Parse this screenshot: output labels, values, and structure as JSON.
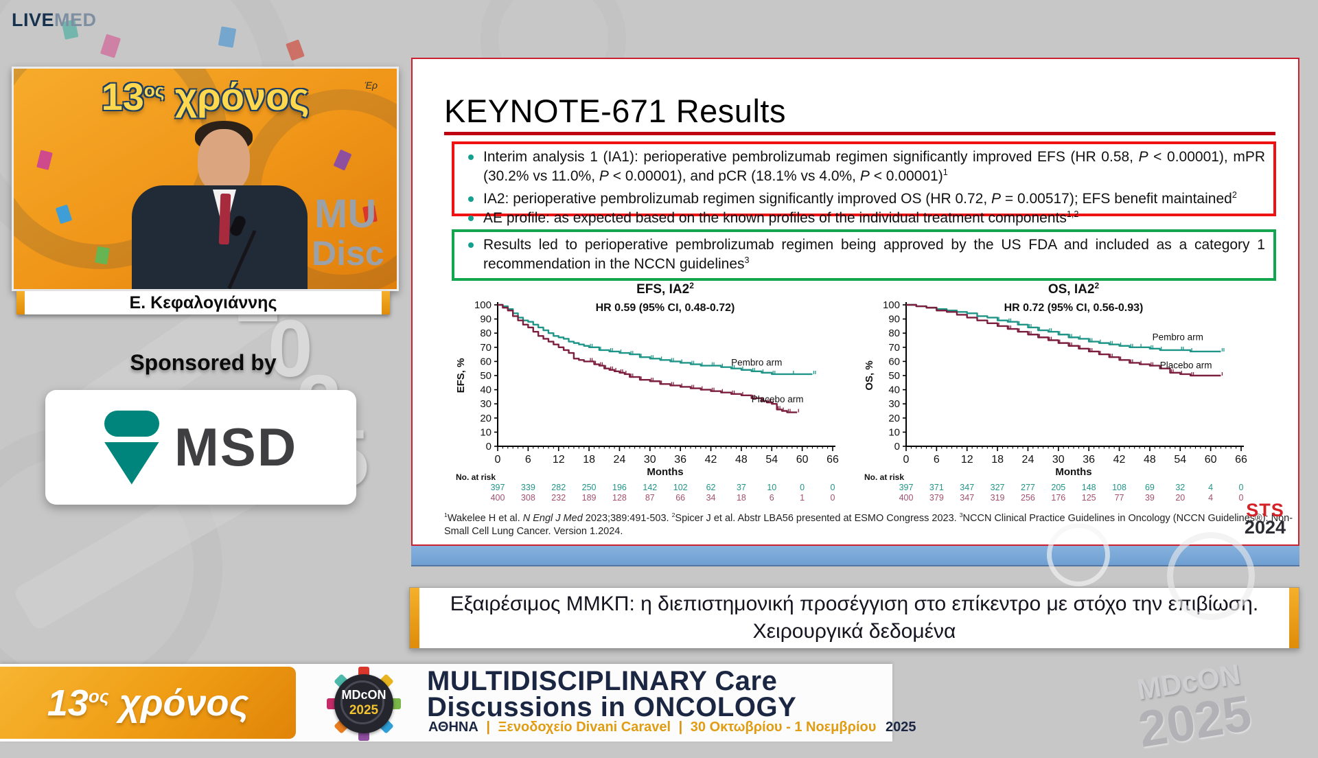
{
  "brand": {
    "live": "LIVE",
    "med": "MED"
  },
  "video": {
    "overlay": {
      "num": "13",
      "sup": "ος",
      "word": " χρόνος"
    },
    "corner_text": "Έρ",
    "backdrop_text_1": "MU",
    "backdrop_text_2": "Disc",
    "speaker_name": "Ε. Κεφαλογιάννης"
  },
  "sponsor": {
    "label": "Sponsored by",
    "logo_text": "MSD"
  },
  "slide": {
    "title": "KEYNOTE-671 Results",
    "bullet_groups": [
      {
        "box": "red",
        "items": [
          "Interim analysis 1 (IA1): perioperative pembrolizumab regimen significantly improved EFS (HR 0.58, <i>P</i> &lt; 0.00001), mPR (30.2% vs 11.0%, <i>P</i> &lt; 0.00001), and pCR (18.1% vs 4.0%, <i>P</i> &lt; 0.00001)<sup>1</sup>",
          "IA2: perioperative pembrolizumab regimen significantly improved OS (HR 0.72, <i>P</i> = 0.00517); EFS benefit maintained<sup>2</sup>"
        ]
      },
      {
        "box": "none",
        "items": [
          "AE profile: as expected based on the known profiles of the individual treatment components<sup>1,2</sup>"
        ]
      },
      {
        "box": "green",
        "items": [
          "Results led to perioperative pembrolizumab regimen being approved by the US FDA and included as a category 1 recommendation in the NCCN guidelines<sup>3</sup>"
        ]
      }
    ],
    "references": "<sup>1</sup>Wakelee H et al. <i>N Engl J Med</i> 2023;389:491-503.  <sup>2</sup>Spicer J et al. Abstr LBA56 presented at ESMO Congress 2023. <sup>3</sup>NCCN Clinical Practice Guidelines in Oncology (NCCN Guidelines®): Non-Small Cell Lung Cancer. Version 1.2024.",
    "sts_logo": {
      "line1": "STS",
      "line2": "2024"
    }
  },
  "chart_data": [
    {
      "type": "line",
      "subtype": "kaplan-meier-step",
      "title": {
        "text": "EFS, IA2",
        "sup": "2"
      },
      "hr_text": "HR 0.59 (95% CI, 0.48-0.72)",
      "ylabel": "EFS, %",
      "xlabel": "Months",
      "ylim": [
        0,
        100
      ],
      "ytick_step": 10,
      "xticks": [
        0,
        6,
        12,
        18,
        24,
        30,
        36,
        42,
        48,
        54,
        60,
        66
      ],
      "grid": false,
      "series": [
        {
          "name": "Pembro arm",
          "color": "#1f9588",
          "points": [
            [
              0,
              100
            ],
            [
              1,
              99
            ],
            [
              2,
              97
            ],
            [
              3,
              94
            ],
            [
              4,
              91
            ],
            [
              5,
              89
            ],
            [
              6,
              88
            ],
            [
              7,
              86
            ],
            [
              8,
              84
            ],
            [
              9,
              82
            ],
            [
              10,
              80
            ],
            [
              11,
              78
            ],
            [
              12,
              77
            ],
            [
              13,
              76
            ],
            [
              14,
              74
            ],
            [
              15,
              73
            ],
            [
              16,
              72
            ],
            [
              17,
              71
            ],
            [
              18,
              70
            ],
            [
              20,
              68
            ],
            [
              22,
              67
            ],
            [
              24,
              66
            ],
            [
              26,
              65
            ],
            [
              28,
              63
            ],
            [
              30,
              62
            ],
            [
              32,
              61
            ],
            [
              34,
              60
            ],
            [
              36,
              59
            ],
            [
              38,
              58
            ],
            [
              40,
              57
            ],
            [
              42,
              57
            ],
            [
              44,
              56
            ],
            [
              46,
              55
            ],
            [
              48,
              54
            ],
            [
              50,
              53
            ],
            [
              52,
              52
            ],
            [
              54,
              51
            ],
            [
              58,
              51
            ],
            [
              62,
              51
            ]
          ]
        },
        {
          "name": "Placebo arm",
          "color": "#7c1f3e",
          "points": [
            [
              0,
              100
            ],
            [
              1,
              98
            ],
            [
              2,
              96
            ],
            [
              3,
              92
            ],
            [
              4,
              89
            ],
            [
              5,
              86
            ],
            [
              6,
              84
            ],
            [
              7,
              81
            ],
            [
              8,
              78
            ],
            [
              9,
              76
            ],
            [
              10,
              74
            ],
            [
              11,
              72
            ],
            [
              12,
              70
            ],
            [
              13,
              68
            ],
            [
              14,
              66
            ],
            [
              15,
              62
            ],
            [
              16,
              61
            ],
            [
              17,
              60
            ],
            [
              18,
              60
            ],
            [
              19,
              58
            ],
            [
              20,
              57
            ],
            [
              21,
              55
            ],
            [
              22,
              54
            ],
            [
              23,
              53
            ],
            [
              24,
              52
            ],
            [
              25,
              51
            ],
            [
              26,
              49
            ],
            [
              28,
              47
            ],
            [
              30,
              46
            ],
            [
              32,
              44
            ],
            [
              34,
              43
            ],
            [
              36,
              42
            ],
            [
              38,
              41
            ],
            [
              40,
              40
            ],
            [
              42,
              39
            ],
            [
              44,
              38
            ],
            [
              46,
              37
            ],
            [
              48,
              36
            ],
            [
              50,
              34
            ],
            [
              52,
              32
            ],
            [
              53,
              31
            ],
            [
              54,
              30
            ],
            [
              55,
              26
            ],
            [
              56,
              25
            ],
            [
              57,
              24
            ],
            [
              59,
              24
            ]
          ]
        }
      ],
      "labels": [
        {
          "text": "Pembro arm",
          "x": 46,
          "y": 57
        },
        {
          "text": "Placebo arm",
          "x": 50,
          "y": 31
        }
      ],
      "no_at_risk": {
        "label": "No. at risk",
        "rows": [
          {
            "name": "Pembro arm",
            "color": "#1f9588",
            "values": [
              "397",
              "339",
              "282",
              "250",
              "196",
              "142",
              "102",
              "62",
              "37",
              "10",
              "0",
              "0"
            ]
          },
          {
            "name": "Placebo arm",
            "color": "#a2506e",
            "values": [
              "400",
              "308",
              "232",
              "189",
              "128",
              "87",
              "66",
              "34",
              "18",
              "6",
              "1",
              "0"
            ]
          }
        ]
      }
    },
    {
      "type": "line",
      "subtype": "kaplan-meier-step",
      "title": {
        "text": "OS, IA2",
        "sup": "2"
      },
      "hr_text": "HR 0.72 (95% CI, 0.56-0.93)",
      "ylabel": "OS, %",
      "xlabel": "Months",
      "ylim": [
        0,
        100
      ],
      "ytick_step": 10,
      "xticks": [
        0,
        6,
        12,
        18,
        24,
        30,
        36,
        42,
        48,
        54,
        60,
        66
      ],
      "grid": false,
      "series": [
        {
          "name": "Pembro arm",
          "color": "#1f9588",
          "points": [
            [
              0,
              100
            ],
            [
              2,
              99
            ],
            [
              4,
              98
            ],
            [
              6,
              97
            ],
            [
              8,
              96
            ],
            [
              10,
              95
            ],
            [
              12,
              94
            ],
            [
              14,
              92
            ],
            [
              16,
              91
            ],
            [
              18,
              89
            ],
            [
              20,
              88
            ],
            [
              22,
              86
            ],
            [
              24,
              84
            ],
            [
              26,
              82
            ],
            [
              28,
              81
            ],
            [
              30,
              79
            ],
            [
              32,
              77
            ],
            [
              34,
              76
            ],
            [
              36,
              74
            ],
            [
              38,
              73
            ],
            [
              40,
              72
            ],
            [
              42,
              71
            ],
            [
              44,
              70
            ],
            [
              46,
              70
            ],
            [
              48,
              69
            ],
            [
              50,
              68
            ],
            [
              54,
              68
            ],
            [
              56,
              67
            ],
            [
              62,
              67
            ]
          ]
        },
        {
          "name": "Placebo arm",
          "color": "#7c1f3e",
          "points": [
            [
              0,
              100
            ],
            [
              2,
              99
            ],
            [
              4,
              98
            ],
            [
              6,
              96
            ],
            [
              8,
              95
            ],
            [
              10,
              93
            ],
            [
              12,
              91
            ],
            [
              14,
              89
            ],
            [
              16,
              87
            ],
            [
              18,
              85
            ],
            [
              20,
              83
            ],
            [
              22,
              81
            ],
            [
              24,
              79
            ],
            [
              26,
              77
            ],
            [
              28,
              75
            ],
            [
              30,
              73
            ],
            [
              32,
              71
            ],
            [
              34,
              69
            ],
            [
              36,
              67
            ],
            [
              38,
              65
            ],
            [
              40,
              63
            ],
            [
              42,
              61
            ],
            [
              44,
              59
            ],
            [
              46,
              58
            ],
            [
              48,
              57
            ],
            [
              50,
              55
            ],
            [
              52,
              52
            ],
            [
              54,
              51
            ],
            [
              56,
              50
            ],
            [
              62,
              50
            ]
          ]
        }
      ],
      "labels": [
        {
          "text": "Pembro arm",
          "x": 48.5,
          "y": 75
        },
        {
          "text": "Placebo arm",
          "x": 50,
          "y": 55
        }
      ],
      "no_at_risk": {
        "label": "No. at risk",
        "rows": [
          {
            "name": "Pembro arm",
            "color": "#1f9588",
            "values": [
              "397",
              "371",
              "347",
              "327",
              "277",
              "205",
              "148",
              "108",
              "69",
              "32",
              "4",
              "0"
            ]
          },
          {
            "name": "Placebo arm",
            "color": "#a2506e",
            "values": [
              "400",
              "379",
              "347",
              "319",
              "256",
              "176",
              "125",
              "77",
              "39",
              "20",
              "4",
              "0"
            ]
          }
        ]
      }
    }
  ],
  "banner": {
    "line1": "Εξαιρέσιμος ΜΜΚΠ: η διεπιστημονική προσέγγιση στο επίκεντρο με στόχο την επιβίωση.",
    "line2": "Χειρουργικά δεδομένα"
  },
  "footer": {
    "left_badge": {
      "num": "13",
      "sup": "ος",
      "word": " χρόνος"
    },
    "logo": {
      "line1": "MDcON",
      "line2": "2025"
    },
    "title_line1": "MULTIDISCIPLINARY Care",
    "title_line2": "Discussions in ONCOLOGY",
    "info": {
      "city": "ΑΘΗΝΑ",
      "sep1": "|",
      "venue": "Ξενοδοχείο Divani Caravel",
      "sep2": "|",
      "dates": "30 Οκτωβρίου - 1 Νοεμβρίου",
      "year": "2025"
    },
    "watermark": {
      "line1": "MDcON",
      "line2": "2025"
    }
  },
  "watermark_2025": [
    "2",
    "0",
    "2",
    "5"
  ],
  "colors": {
    "accent_bullet": "#14a08e",
    "red_box": "#ee1212",
    "green_box": "#13a64e",
    "title_rule": "#bf0010",
    "pembro_curve": "#1f9588",
    "placebo_curve": "#7c1f3e",
    "blue_strip": "#6f9fd2",
    "brand_orange": "#ef9c14",
    "navy": "#1b2742",
    "gold": "#e09c12",
    "msd_teal": "#00857c",
    "sts_red": "#d42027"
  }
}
